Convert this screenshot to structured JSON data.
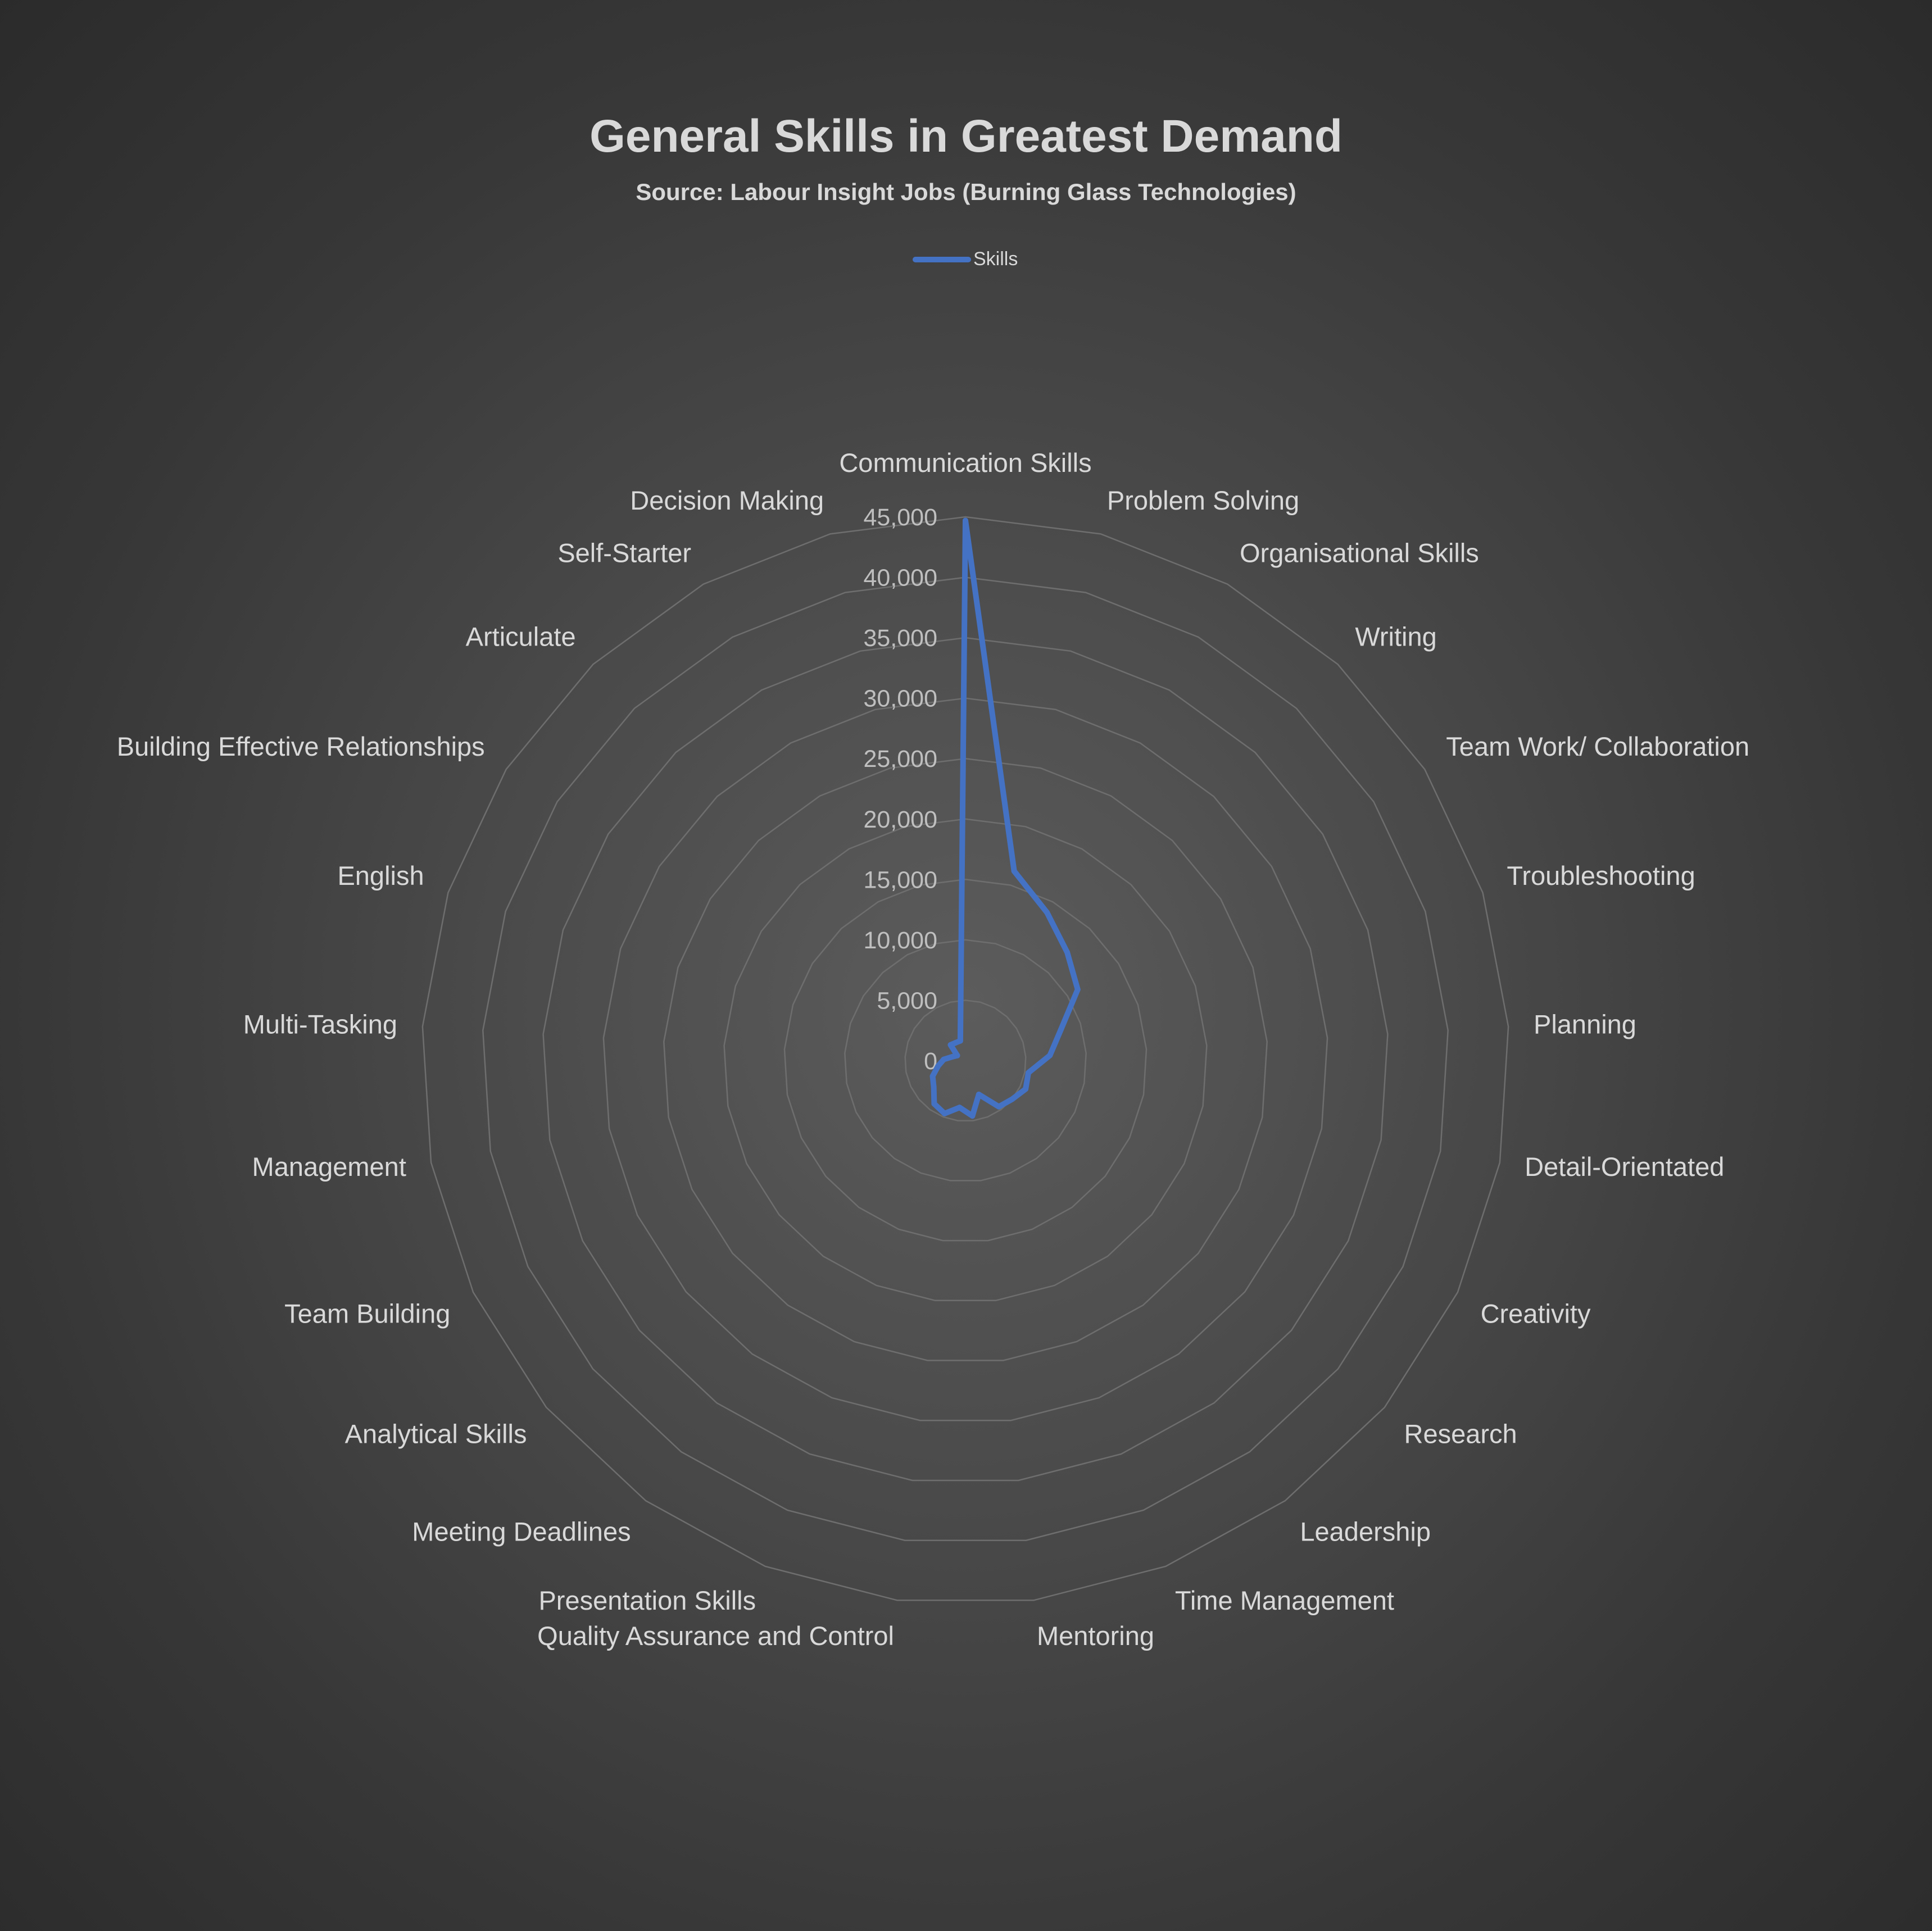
{
  "chart_data": {
    "type": "radar",
    "title": "General Skills in Greatest Demand",
    "subtitle": "Source: Labour Insight Jobs (Burning Glass Technologies)",
    "legend": {
      "position": "top",
      "entries": [
        "Skills"
      ]
    },
    "categories": [
      "Communication Skills",
      "Problem Solving",
      "Organisational Skills",
      "Writing",
      "Team Work/ Collaboration",
      "Troubleshooting",
      "Planning",
      "Detail-Orientated",
      "Creativity",
      "Research",
      "Leadership",
      "Time Management",
      "Mentoring",
      "Quality Assurance and Control",
      "Presentation Skills",
      "Meeting Deadlines",
      "Analytical Skills",
      "Team Building",
      "Management",
      "Multi-Tasking",
      "English",
      "Building Effective Relationships",
      "Articulate",
      "Self-Starter",
      "Decision Making"
    ],
    "series": [
      {
        "name": "Skills",
        "color": "#4472c4",
        "values": [
          44700,
          16200,
          14000,
          12300,
          11000,
          8300,
          7000,
          5300,
          5500,
          5000,
          4700,
          3000,
          4600,
          3900,
          4700,
          4400,
          3400,
          3000,
          2300,
          1800,
          1100,
          800,
          1800,
          1700,
          1700
        ]
      }
    ],
    "rlim": [
      0,
      45000
    ],
    "rticks": [
      "0",
      "5,000",
      "10,000",
      "15,000",
      "20,000",
      "25,000",
      "30,000",
      "35,000",
      "40,000",
      "45,000"
    ],
    "grid": true
  }
}
